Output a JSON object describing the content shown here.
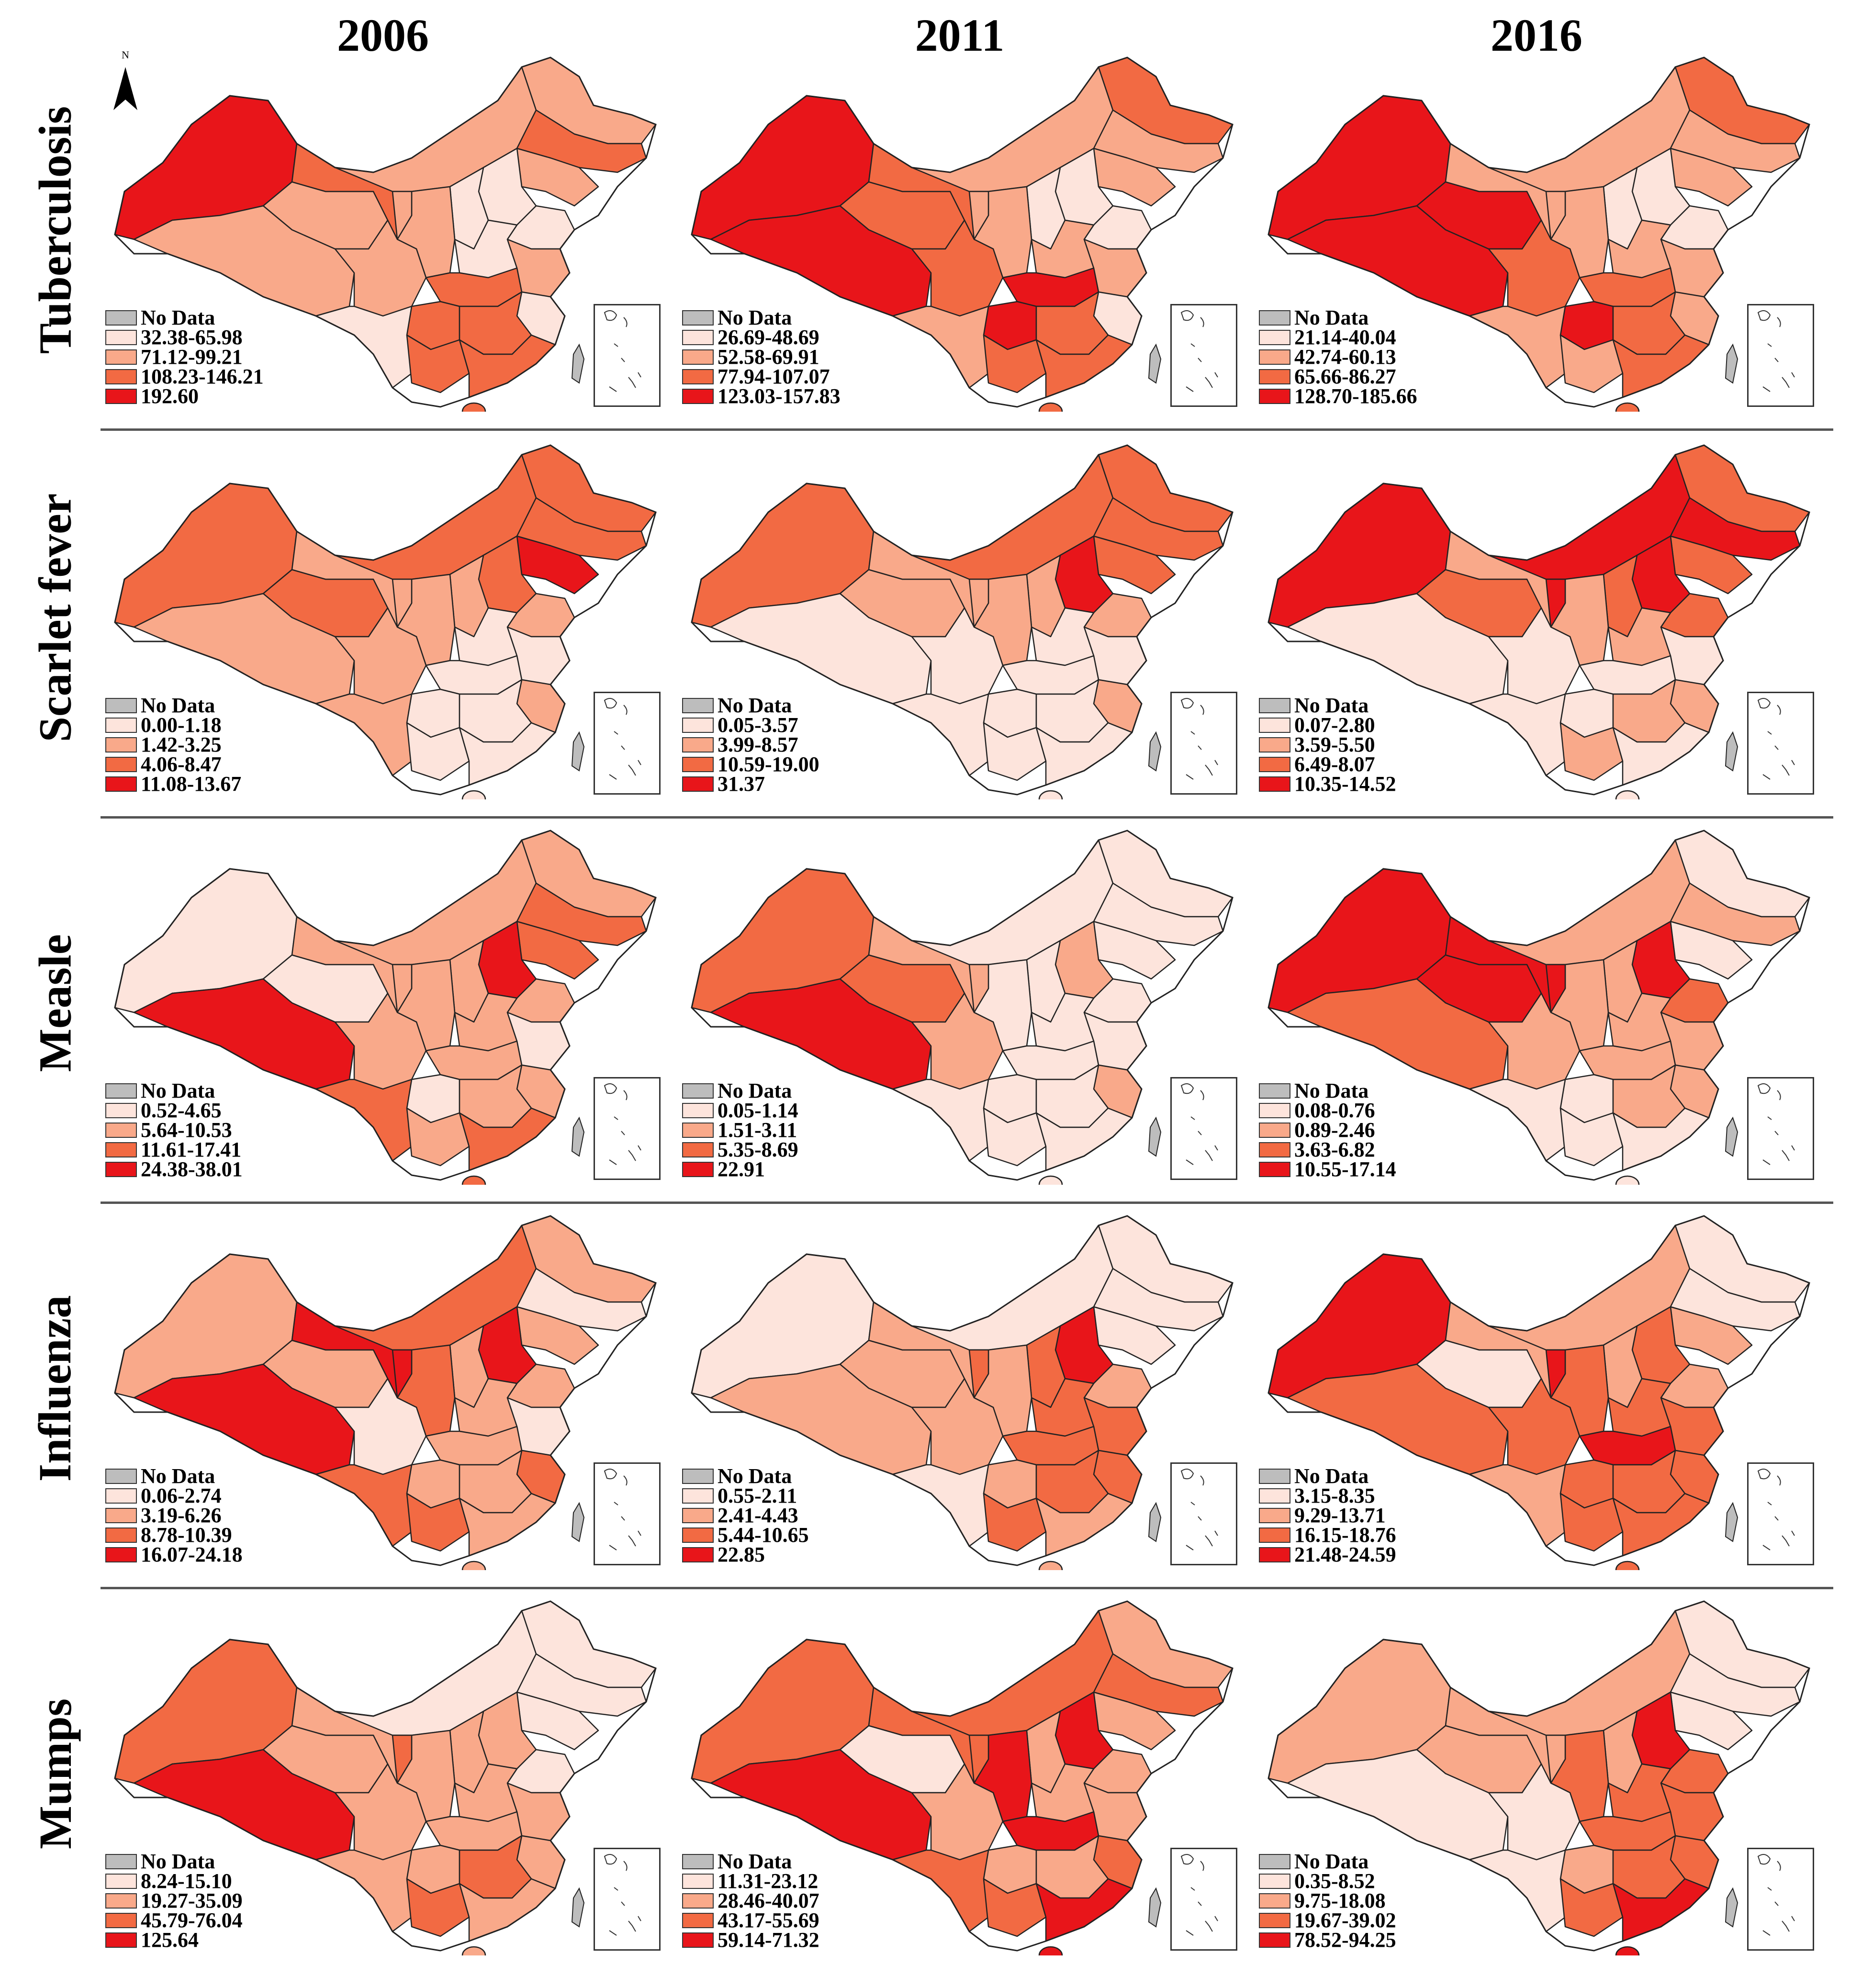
{
  "columns": [
    "2006",
    "2011",
    "2016"
  ],
  "colors": {
    "no_data": "#bdbdbd",
    "class1": "#fde4dc",
    "class2": "#f9a98a",
    "class3": "#f26a43",
    "class4": "#e8151a",
    "border": "#222222"
  },
  "north_arrow_label": "N",
  "rows": [
    {
      "name": "Tuberculosis",
      "panels": [
        {
          "year": "2006",
          "legend": [
            "No Data",
            "32.38-65.98",
            "71.12-99.21",
            "108.23-146.21",
            "192.60"
          ]
        },
        {
          "year": "2011",
          "legend": [
            "No Data",
            "26.69-48.69",
            "52.58-69.91",
            "77.94-107.07",
            "123.03-157.83"
          ]
        },
        {
          "year": "2016",
          "legend": [
            "No Data",
            "21.14-40.04",
            "42.74-60.13",
            "65.66-86.27",
            "128.70-185.66"
          ]
        }
      ]
    },
    {
      "name": "Scarlet fever",
      "panels": [
        {
          "year": "2006",
          "legend": [
            "No Data",
            "0.00-1.18",
            "1.42-3.25",
            "4.06-8.47",
            "11.08-13.67"
          ]
        },
        {
          "year": "2011",
          "legend": [
            "No Data",
            "0.05-3.57",
            "3.99-8.57",
            "10.59-19.00",
            "31.37"
          ]
        },
        {
          "year": "2016",
          "legend": [
            "No Data",
            "0.07-2.80",
            "3.59-5.50",
            "6.49-8.07",
            "10.35-14.52"
          ]
        }
      ]
    },
    {
      "name": "Measle",
      "panels": [
        {
          "year": "2006",
          "legend": [
            "No Data",
            "0.52-4.65",
            "5.64-10.53",
            "11.61-17.41",
            "24.38-38.01"
          ]
        },
        {
          "year": "2011",
          "legend": [
            "No Data",
            "0.05-1.14",
            "1.51-3.11",
            "5.35-8.69",
            "22.91"
          ]
        },
        {
          "year": "2016",
          "legend": [
            "No Data",
            "0.08-0.76",
            "0.89-2.46",
            "3.63-6.82",
            "10.55-17.14"
          ]
        }
      ]
    },
    {
      "name": "Influenza",
      "panels": [
        {
          "year": "2006",
          "legend": [
            "No Data",
            "0.06-2.74",
            "3.19-6.26",
            "8.78-10.39",
            "16.07-24.18"
          ]
        },
        {
          "year": "2011",
          "legend": [
            "No Data",
            "0.55-2.11",
            "2.41-4.43",
            "5.44-10.65",
            "22.85"
          ]
        },
        {
          "year": "2016",
          "legend": [
            "No Data",
            "3.15-8.35",
            "9.29-13.71",
            "16.15-18.76",
            "21.48-24.59"
          ]
        }
      ]
    },
    {
      "name": "Mumps",
      "panels": [
        {
          "year": "2006",
          "legend": [
            "No Data",
            "8.24-15.10",
            "19.27-35.09",
            "45.79-76.04",
            "125.64"
          ]
        },
        {
          "year": "2011",
          "legend": [
            "No Data",
            "11.31-23.12",
            "28.46-40.07",
            "43.17-55.69",
            "59.14-71.32"
          ]
        },
        {
          "year": "2016",
          "legend": [
            "No Data",
            "0.35-8.52",
            "9.75-18.08",
            "19.67-39.02",
            "78.52-94.25"
          ]
        }
      ]
    }
  ]
}
